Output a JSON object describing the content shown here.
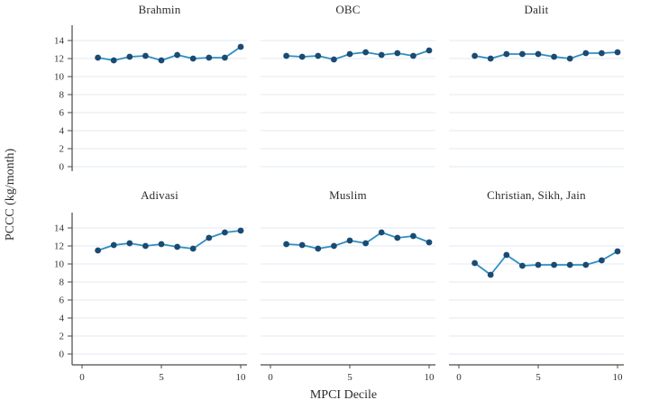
{
  "chart_data": {
    "type": "line",
    "title": "",
    "xlabel": "MPCI Decile",
    "ylabel": "PCCC (kg/month)",
    "x": [
      1,
      2,
      3,
      4,
      5,
      6,
      7,
      8,
      9,
      10
    ],
    "xticks": [
      0,
      5,
      10
    ],
    "yticks": [
      0,
      2,
      4,
      6,
      8,
      10,
      12,
      14
    ],
    "xlim": [
      0,
      10.6
    ],
    "ylim": [
      0,
      16
    ],
    "grid": "horizontal-only",
    "legend": "none",
    "layout": "2 rows x 3 columns of small-multiple panels",
    "panels": [
      {
        "title": "Brahmin",
        "values": [
          12.1,
          11.8,
          12.2,
          12.3,
          11.8,
          12.4,
          12.0,
          12.1,
          12.1,
          13.3
        ]
      },
      {
        "title": "OBC",
        "values": [
          12.3,
          12.2,
          12.3,
          11.9,
          12.5,
          12.7,
          12.4,
          12.6,
          12.3,
          12.9
        ]
      },
      {
        "title": "Dalit",
        "values": [
          12.3,
          12.0,
          12.5,
          12.5,
          12.5,
          12.2,
          12.0,
          12.6,
          12.6,
          12.7
        ]
      },
      {
        "title": "Adivasi",
        "values": [
          11.5,
          12.1,
          12.3,
          12.0,
          12.2,
          11.9,
          11.7,
          12.9,
          13.5,
          13.7
        ]
      },
      {
        "title": "Muslim",
        "values": [
          12.2,
          12.1,
          11.7,
          12.0,
          12.6,
          12.3,
          13.5,
          12.9,
          13.1,
          12.4
        ]
      },
      {
        "title": "Christian, Sikh, Jain",
        "values": [
          10.1,
          8.8,
          11.0,
          9.8,
          9.9,
          9.9,
          9.9,
          9.9,
          10.4,
          11.4
        ]
      }
    ],
    "colors": {
      "line": "#2f8ec4",
      "marker": "#1b4a72",
      "grid": "#e6edf3",
      "axis": "#4a4a4a",
      "text": "#333333"
    }
  }
}
